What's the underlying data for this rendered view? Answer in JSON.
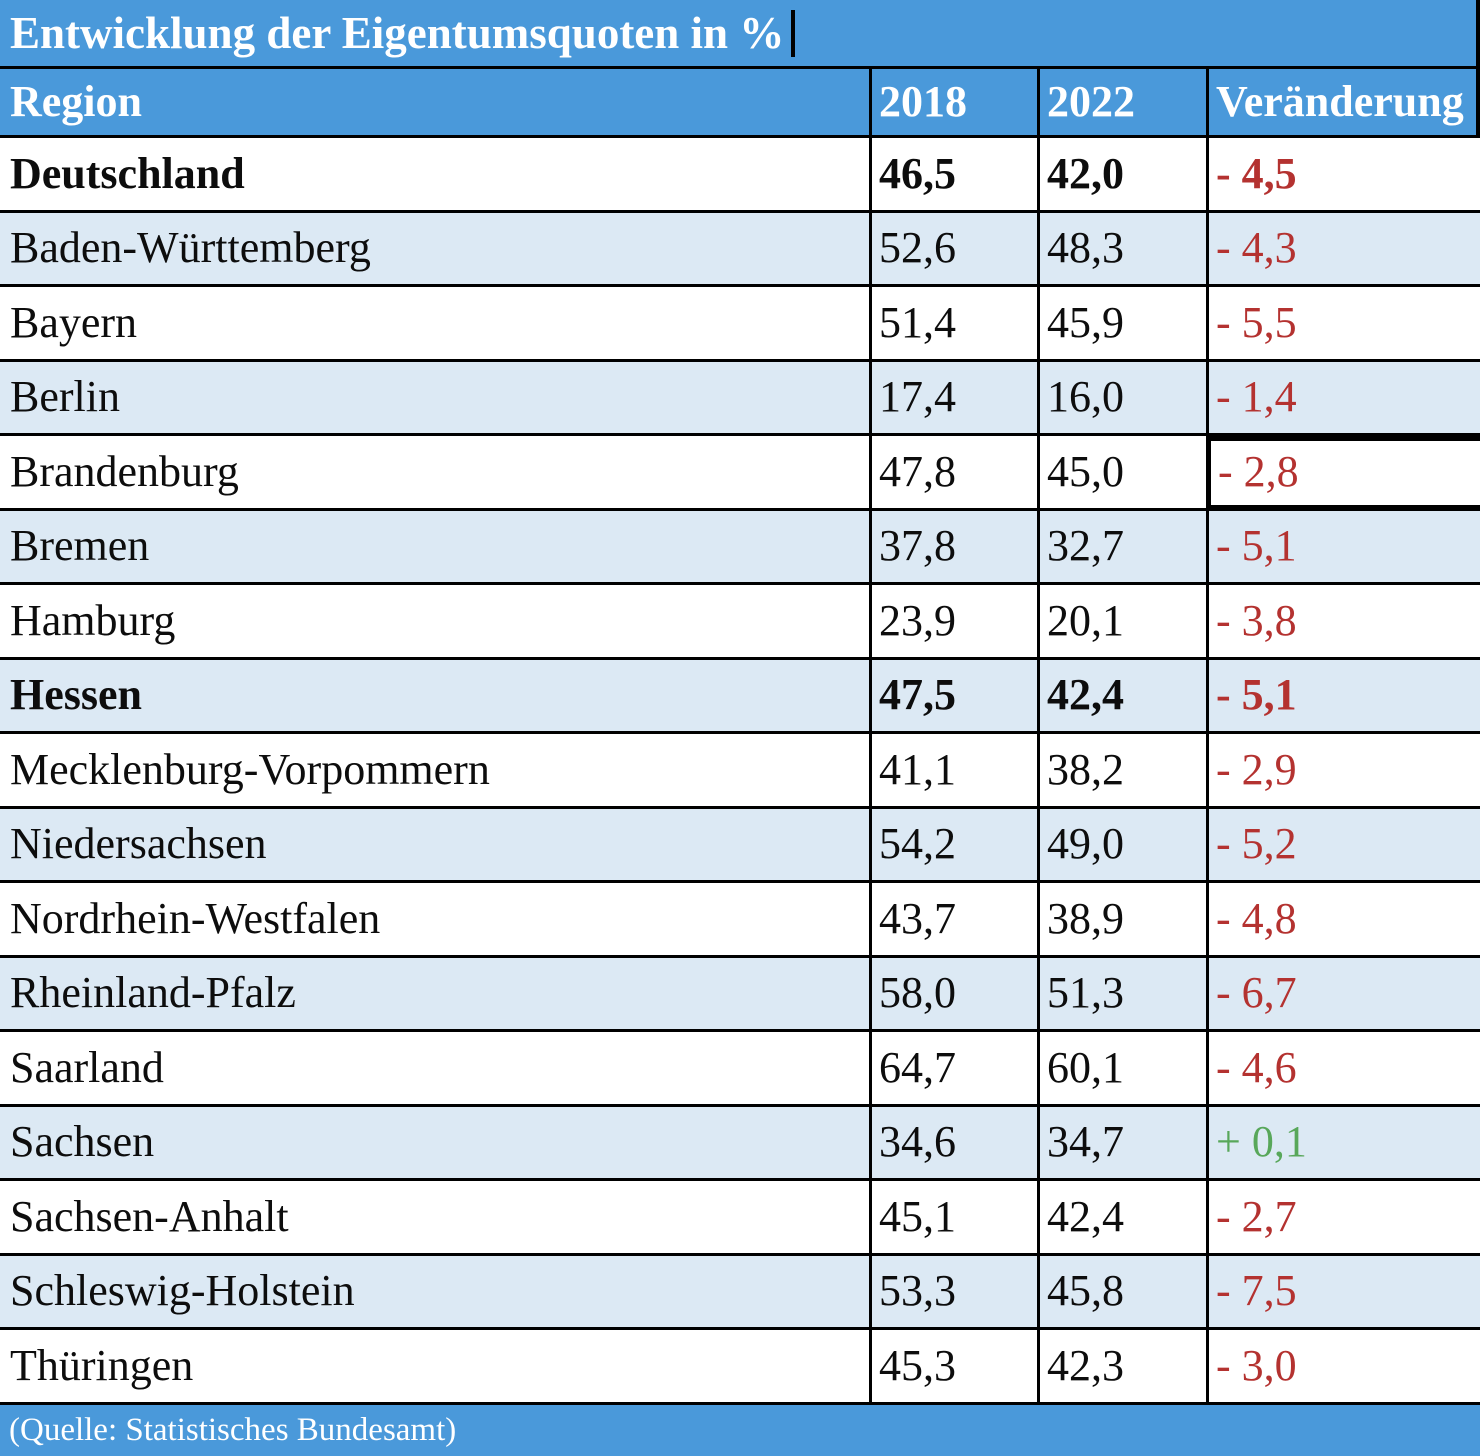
{
  "title_bar": {
    "text": "Entwicklung der Eigentumsquoten in %"
  },
  "table": {
    "header": [
      "Region",
      "2018",
      "2022",
      "Veränderung"
    ],
    "rows": [
      {
        "region": "Deutschland",
        "2018": "46,5",
        "2022": "42,0",
        "change": "- 4,5",
        "trend": "negative",
        "emphasis": true,
        "active_cell": false
      },
      {
        "region": "Baden-Württemberg",
        "2018": "52,6",
        "2022": "48,3",
        "change": "- 4,3",
        "trend": "negative",
        "emphasis": false,
        "active_cell": false
      },
      {
        "region": "Bayern",
        "2018": "51,4",
        "2022": "45,9",
        "change": "- 5,5",
        "trend": "negative",
        "emphasis": false,
        "active_cell": false
      },
      {
        "region": "Berlin",
        "2018": "17,4",
        "2022": "16,0",
        "change": "- 1,4",
        "trend": "negative",
        "emphasis": false,
        "active_cell": false
      },
      {
        "region": "Brandenburg",
        "2018": "47,8",
        "2022": "45,0",
        "change": "- 2,8",
        "trend": "negative",
        "emphasis": false,
        "active_cell": true
      },
      {
        "region": "Bremen",
        "2018": "37,8",
        "2022": "32,7",
        "change": "- 5,1",
        "trend": "negative",
        "emphasis": false,
        "active_cell": false
      },
      {
        "region": "Hamburg",
        "2018": "23,9",
        "2022": "20,1",
        "change": "- 3,8",
        "trend": "negative",
        "emphasis": false,
        "active_cell": false
      },
      {
        "region": "Hessen",
        "2018": "47,5",
        "2022": "42,4",
        "change": "- 5,1",
        "trend": "negative",
        "emphasis": true,
        "active_cell": false
      },
      {
        "region": "Mecklenburg-Vorpommern",
        "2018": "41,1",
        "2022": "38,2",
        "change": "- 2,9",
        "trend": "negative",
        "emphasis": false,
        "active_cell": false
      },
      {
        "region": "Niedersachsen",
        "2018": "54,2",
        "2022": "49,0",
        "change": "- 5,2",
        "trend": "negative",
        "emphasis": false,
        "active_cell": false
      },
      {
        "region": "Nordrhein-Westfalen",
        "2018": "43,7",
        "2022": "38,9",
        "change": "- 4,8",
        "trend": "negative",
        "emphasis": false,
        "active_cell": false
      },
      {
        "region": "Rheinland-Pfalz",
        "2018": "58,0",
        "2022": "51,3",
        "change": "- 6,7",
        "trend": "negative",
        "emphasis": false,
        "active_cell": false
      },
      {
        "region": "Saarland",
        "2018": "64,7",
        "2022": "60,1",
        "change": "- 4,6",
        "trend": "negative",
        "emphasis": false,
        "active_cell": false
      },
      {
        "region": "Sachsen",
        "2018": "34,6",
        "2022": "34,7",
        "change": "+ 0,1",
        "trend": "positive",
        "emphasis": false,
        "active_cell": false
      },
      {
        "region": "Sachsen-Anhalt",
        "2018": "45,1",
        "2022": "42,4",
        "change": "- 2,7",
        "trend": "negative",
        "emphasis": false,
        "active_cell": false
      },
      {
        "region": "Schleswig-Holstein",
        "2018": "53,3",
        "2022": "45,8",
        "change": "- 7,5",
        "trend": "negative",
        "emphasis": false,
        "active_cell": false
      },
      {
        "region": "Thüringen",
        "2018": "45,3",
        "2022": "42,3",
        "change": "- 3,0",
        "trend": "negative",
        "emphasis": false,
        "active_cell": false
      }
    ]
  },
  "footer": {
    "text": "(Quelle: Statistisches Bundesamt)"
  },
  "colors": {
    "header_bg": "#4a99da",
    "alt_row_bg": "#dce9f4",
    "negative": "#b43230",
    "positive": "#58a75a",
    "border": "#000000"
  },
  "chart_data": {
    "type": "table",
    "title": "Entwicklung der Eigentumsquoten in %",
    "unit": "%",
    "columns": [
      "Region",
      "2018",
      "2022",
      "Veränderung"
    ],
    "rows": [
      [
        "Deutschland",
        46.5,
        42.0,
        -4.5
      ],
      [
        "Baden-Württemberg",
        52.6,
        48.3,
        -4.3
      ],
      [
        "Bayern",
        51.4,
        45.9,
        -5.5
      ],
      [
        "Berlin",
        17.4,
        16.0,
        -1.4
      ],
      [
        "Brandenburg",
        47.8,
        45.0,
        -2.8
      ],
      [
        "Bremen",
        37.8,
        32.7,
        -5.1
      ],
      [
        "Hamburg",
        23.9,
        20.1,
        -3.8
      ],
      [
        "Hessen",
        47.5,
        42.4,
        -5.1
      ],
      [
        "Mecklenburg-Vorpommern",
        41.1,
        38.2,
        -2.9
      ],
      [
        "Niedersachsen",
        54.2,
        49.0,
        -5.2
      ],
      [
        "Nordrhein-Westfalen",
        43.7,
        38.9,
        -4.8
      ],
      [
        "Rheinland-Pfalz",
        58.0,
        51.3,
        -6.7
      ],
      [
        "Saarland",
        64.7,
        60.1,
        -4.6
      ],
      [
        "Sachsen",
        34.6,
        34.7,
        0.1
      ],
      [
        "Sachsen-Anhalt",
        45.1,
        42.4,
        -2.7
      ],
      [
        "Schleswig-Holstein",
        53.3,
        45.8,
        -7.5
      ],
      [
        "Thüringen",
        45.3,
        42.3,
        -3.0
      ]
    ],
    "source": "(Quelle: Statistisches Bundesamt)",
    "layout": {
      "emphasized_rows": [
        "Deutschland",
        "Hessen"
      ],
      "alternating_row_shading": true,
      "positive_change_color": "#58a75a",
      "negative_change_color": "#b43230"
    }
  }
}
